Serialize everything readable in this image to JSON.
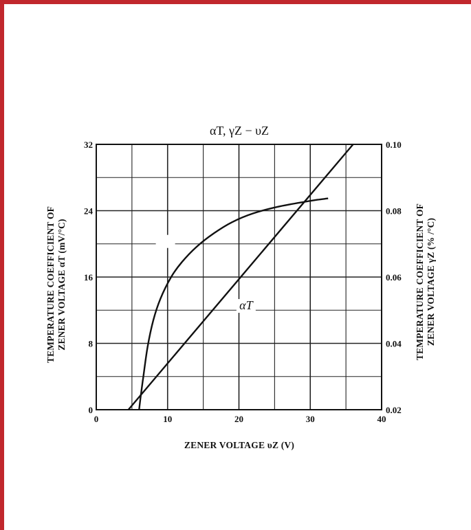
{
  "chart_data": {
    "type": "line",
    "title": "αT, γZ − υZ",
    "xlabel": "ZENER VOLTAGE  υZ  (V)",
    "ylabel_left": [
      "TEMPERATURE COEFFICIENT OF",
      "ZENER VOLTAGE  αT  (mV/°C)"
    ],
    "ylabel_right": [
      "TEMPERATURE COEFFICIENT OF",
      "ZENER VOLTAGE  γZ  (% /°C)"
    ],
    "xlim": [
      0,
      40
    ],
    "ylim_left": [
      0,
      32
    ],
    "ylim_right": [
      0.02,
      0.1
    ],
    "x_ticks": [
      "0",
      "10",
      "20",
      "30",
      "40"
    ],
    "y_left_ticks": [
      "0",
      "8",
      "16",
      "24",
      "32"
    ],
    "y_right_ticks": [
      "0.02",
      "0.04",
      "0.06",
      "0.08",
      "0.10"
    ],
    "grid": true,
    "series": [
      {
        "name": "γZ",
        "axis": "right",
        "color": "#111111",
        "x": [
          6.0,
          6.2,
          6.6,
          7.2,
          8.0,
          9.0,
          10.5,
          12.0,
          14.0,
          16.5,
          19.0,
          22.0,
          25.5,
          29.0,
          31.0,
          32.5
        ],
        "y": [
          0.02,
          0.0235,
          0.03,
          0.039,
          0.047,
          0.0535,
          0.06,
          0.0645,
          0.069,
          0.0732,
          0.0765,
          0.0792,
          0.0812,
          0.0826,
          0.0833,
          0.0837
        ]
      },
      {
        "name": "αT",
        "axis": "left",
        "color": "#111111",
        "x": [
          4.5,
          36.0
        ],
        "y": [
          0,
          32
        ]
      }
    ]
  }
}
